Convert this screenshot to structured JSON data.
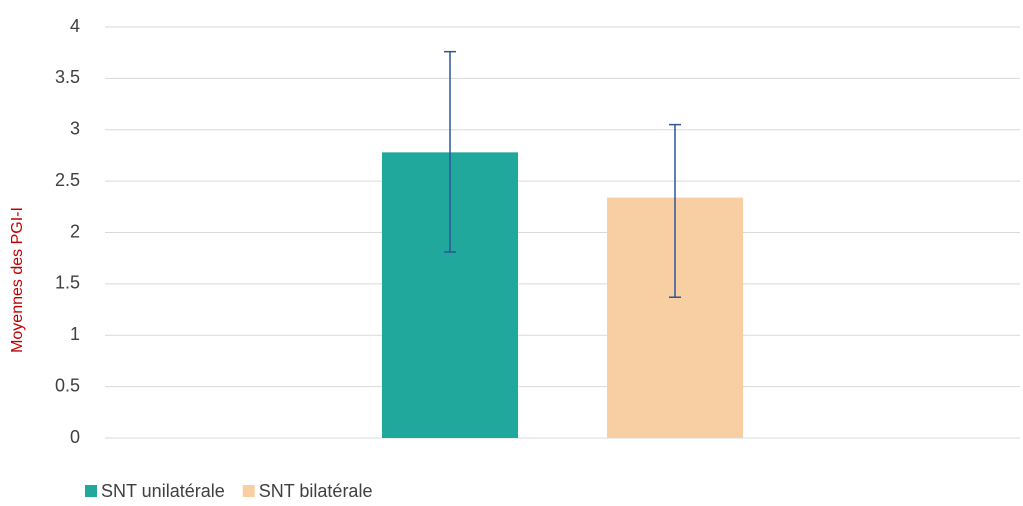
{
  "chart_data": {
    "type": "bar",
    "y_label": "Moyennes des PGI-I",
    "categories": [
      null
    ],
    "series": [
      {
        "name": "SNT unilatérale",
        "color": "#1fa89b",
        "values": [
          2.78
        ],
        "errors_minus": [
          0.97
        ],
        "errors_plus": [
          0.98
        ]
      },
      {
        "name": "SNT bilatérale",
        "color": "#f8cfa2",
        "values": [
          2.34
        ],
        "errors_minus": [
          0.97
        ],
        "errors_plus": [
          0.71
        ]
      }
    ],
    "error_color": "#2f5597",
    "ylim": [
      0,
      4
    ],
    "yticks": [
      0,
      0.5,
      1,
      1.5,
      2,
      2.5,
      3,
      3.5,
      4
    ],
    "grid": true
  }
}
